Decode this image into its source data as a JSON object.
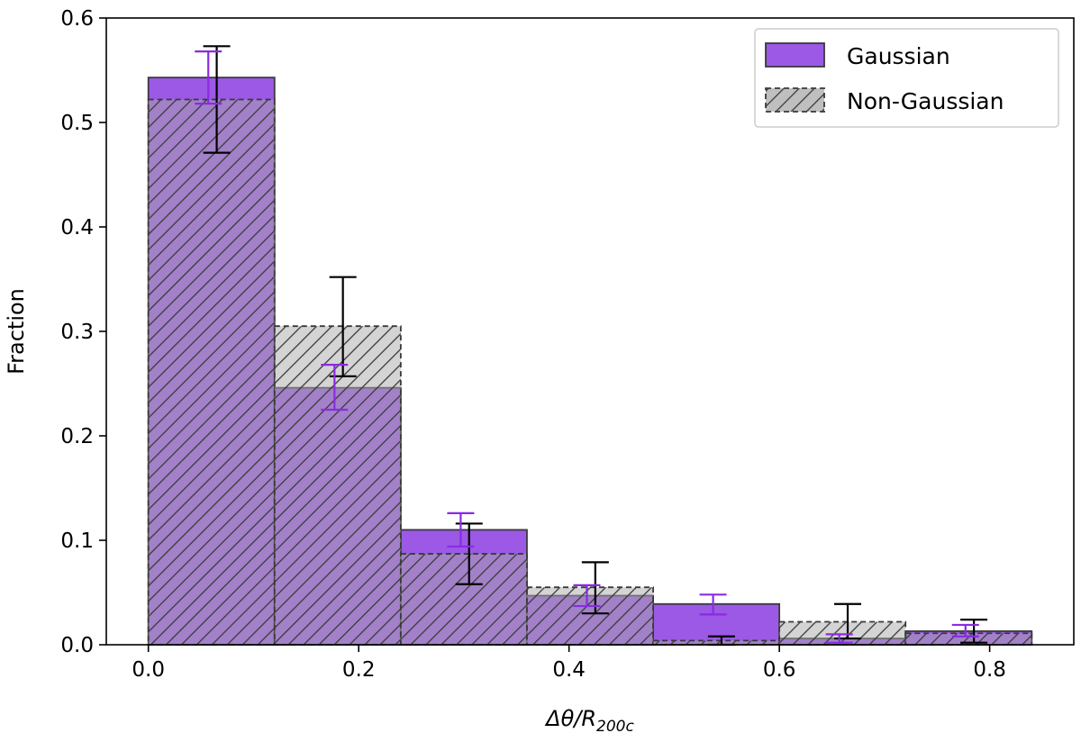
{
  "chart_data": {
    "type": "bar",
    "xlabel": {
      "prefix": "Δθ/R",
      "subscript": "200c"
    },
    "ylabel": "Fraction",
    "xlim": [
      -0.04,
      0.88
    ],
    "ylim": [
      0,
      0.6
    ],
    "xticks": [
      "0.0",
      "0.2",
      "0.4",
      "0.6",
      "0.8"
    ],
    "yticks": [
      "0.0",
      "0.1",
      "0.2",
      "0.3",
      "0.4",
      "0.5",
      "0.6"
    ],
    "xtick_values": [
      0.0,
      0.2,
      0.4,
      0.6,
      0.8
    ],
    "ytick_values": [
      0.0,
      0.1,
      0.2,
      0.3,
      0.4,
      0.5,
      0.6
    ],
    "bin_edges": [
      0.0,
      0.12,
      0.24,
      0.36,
      0.48,
      0.6,
      0.72,
      0.84
    ],
    "grid": false,
    "legend_position": "top-right",
    "series": [
      {
        "name": "Gaussian",
        "color": "#9b59e6",
        "style": "solid",
        "values": [
          0.543,
          0.246,
          0.11,
          0.047,
          0.039,
          0.006,
          0.013
        ],
        "err_low": [
          0.518,
          0.225,
          0.094,
          0.037,
          0.029,
          0.002,
          0.008
        ],
        "err_high": [
          0.568,
          0.268,
          0.126,
          0.057,
          0.048,
          0.01,
          0.019
        ],
        "err_color": "#8a2be2"
      },
      {
        "name": "Non-Gaussian",
        "color": "#a9a9a9",
        "style": "hatched",
        "values": [
          0.522,
          0.305,
          0.087,
          0.055,
          0.004,
          0.022,
          0.011
        ],
        "err_low": [
          0.471,
          0.257,
          0.058,
          0.03,
          0.0,
          0.006,
          0.002
        ],
        "err_high": [
          0.573,
          0.352,
          0.116,
          0.079,
          0.008,
          0.039,
          0.024
        ],
        "err_color": "#000000"
      }
    ]
  }
}
